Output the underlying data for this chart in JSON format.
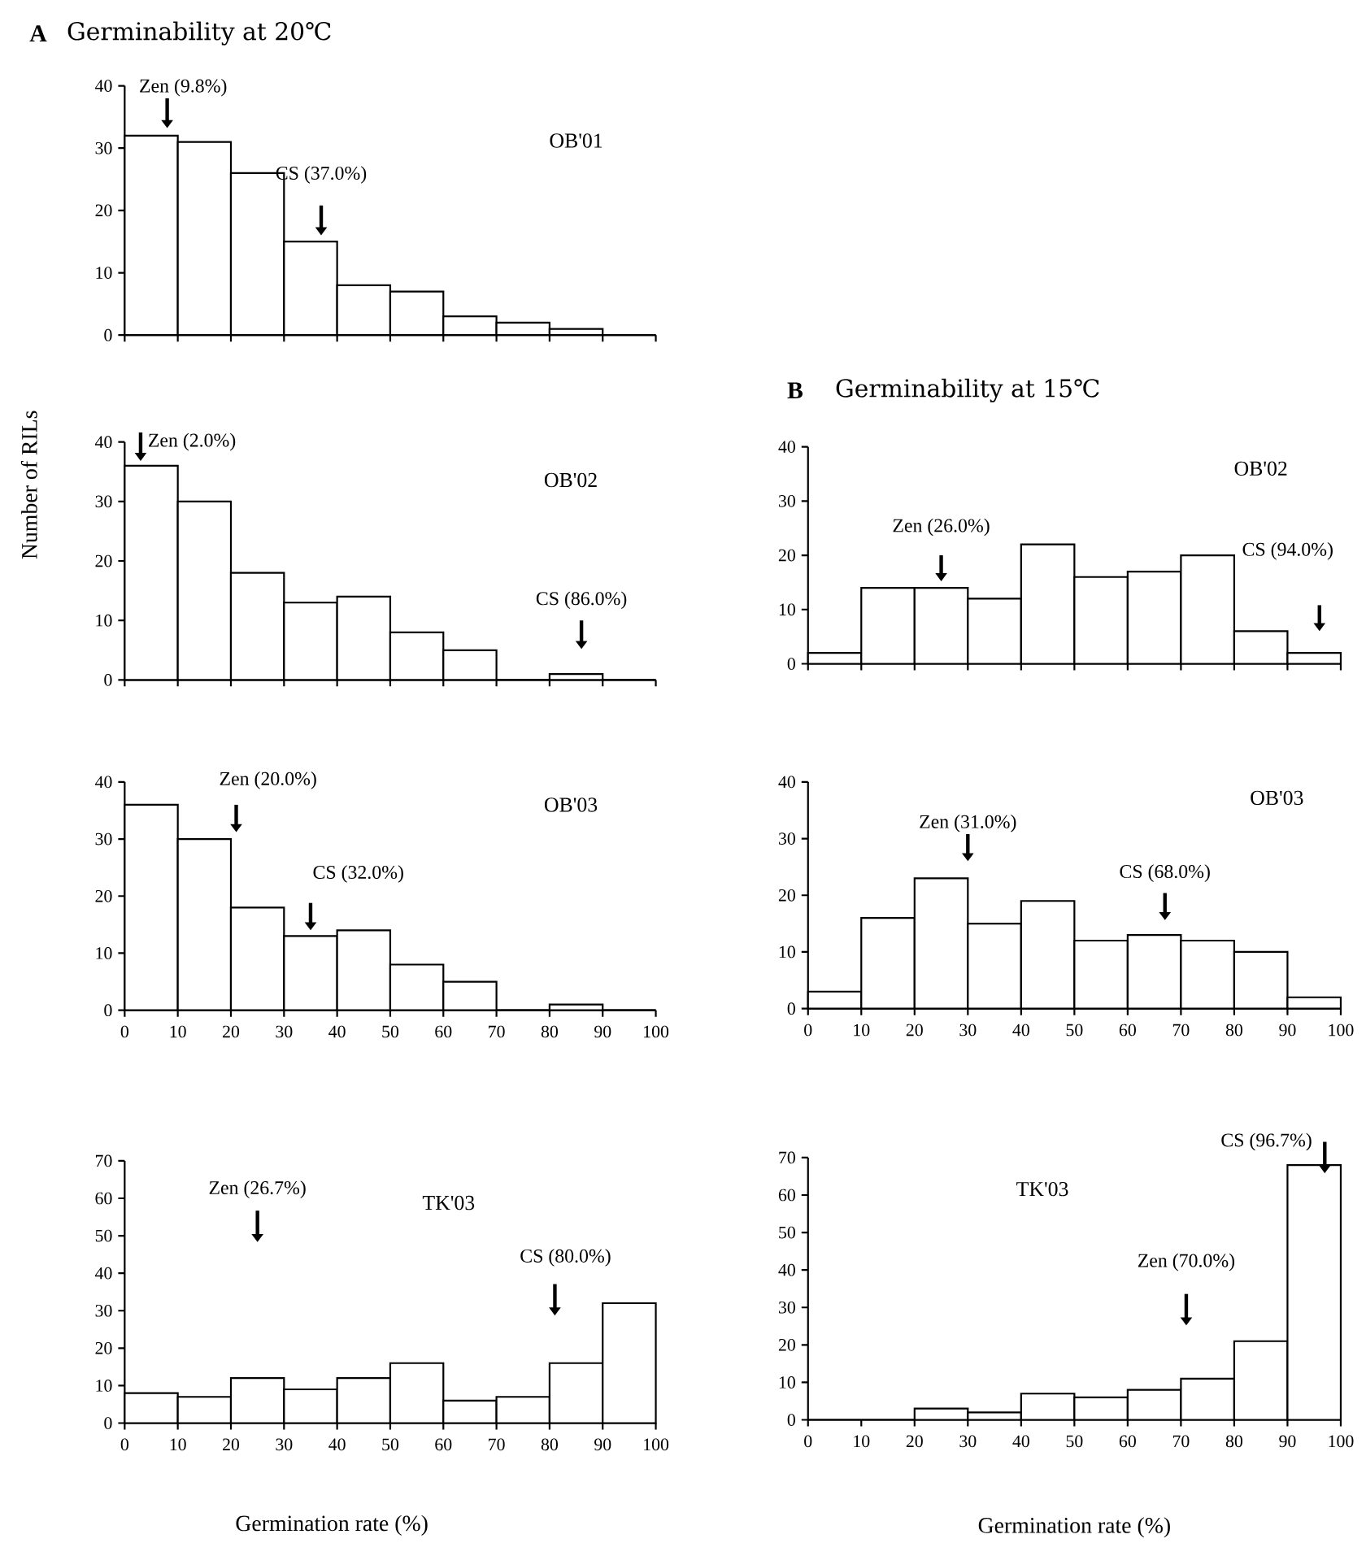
{
  "chart_data": [
    {
      "type": "histogram",
      "title": "Germinability at 20℃",
      "subtitle": "OB'01",
      "bins": [
        0,
        10,
        20,
        30,
        40,
        50,
        60,
        70,
        80,
        90,
        100
      ],
      "values": [
        32,
        31,
        26,
        15,
        8,
        7,
        3,
        2,
        1,
        0
      ],
      "xlim": [
        0,
        100
      ],
      "ylim": [
        0,
        40
      ],
      "xticks": [
        0,
        10,
        20,
        30,
        40,
        50,
        60,
        70,
        80,
        90,
        100
      ],
      "yticks": [
        0,
        10,
        20,
        30,
        40
      ],
      "tick_labels": "y",
      "annotations": [
        "A",
        "Zen (9.8%)",
        "CS (37.0%)"
      ]
    },
    {
      "type": "histogram",
      "subtitle": "OB'02",
      "ylabel": "Number of RILs",
      "bins": [
        0,
        10,
        20,
        30,
        40,
        50,
        60,
        70,
        80,
        90,
        100
      ],
      "values": [
        36,
        30,
        18,
        13,
        14,
        8,
        5,
        0,
        1,
        0
      ],
      "xlim": [
        0,
        100
      ],
      "ylim": [
        0,
        40
      ],
      "xticks": [
        0,
        10,
        20,
        30,
        40,
        50,
        60,
        70,
        80,
        90,
        100
      ],
      "yticks": [
        0,
        10,
        20,
        30,
        40
      ],
      "tick_labels": "y",
      "annotations": [
        "Zen (2.0%)",
        "CS (86.0%)"
      ]
    },
    {
      "type": "histogram",
      "subtitle": "OB'03",
      "bins": [
        0,
        10,
        20,
        30,
        40,
        50,
        60,
        70,
        80,
        90,
        100
      ],
      "values": [
        36,
        30,
        18,
        13,
        14,
        8,
        5,
        0,
        1,
        0
      ],
      "xlim": [
        0,
        100
      ],
      "ylim": [
        0,
        40
      ],
      "xticks": [
        0,
        10,
        20,
        30,
        40,
        50,
        60,
        70,
        80,
        90,
        100
      ],
      "yticks": [
        0,
        10,
        20,
        30,
        40
      ],
      "annotations": [
        "Zen (20.0%)",
        "CS (32.0%)"
      ]
    },
    {
      "type": "histogram",
      "subtitle": "TK'03",
      "xlabel": "Germination rate  (%)",
      "bins": [
        0,
        10,
        20,
        30,
        40,
        50,
        60,
        70,
        80,
        90,
        100
      ],
      "values": [
        8,
        7,
        12,
        9,
        12,
        16,
        6,
        7,
        16,
        32
      ],
      "xlim": [
        0,
        100
      ],
      "ylim": [
        0,
        70
      ],
      "xticks": [
        0,
        10,
        20,
        30,
        40,
        50,
        60,
        70,
        80,
        90,
        100
      ],
      "yticks": [
        0,
        10,
        20,
        30,
        40,
        50,
        60,
        70
      ],
      "annotations": [
        "Zen (26.7%)",
        "CS (80.0%)"
      ]
    },
    {
      "type": "histogram",
      "title": "Germinability at 15℃",
      "subtitle": "OB'02",
      "bins": [
        0,
        10,
        20,
        30,
        40,
        50,
        60,
        70,
        80,
        90,
        100
      ],
      "values": [
        2,
        14,
        14,
        12,
        22,
        16,
        17,
        20,
        6,
        2
      ],
      "xlim": [
        0,
        100
      ],
      "ylim": [
        0,
        40
      ],
      "xticks": [
        0,
        10,
        20,
        30,
        40,
        50,
        60,
        70,
        80,
        90,
        100
      ],
      "yticks": [
        0,
        10,
        20,
        30,
        40
      ],
      "tick_labels": "y",
      "annotations": [
        "B",
        "Zen (26.0%)",
        "CS (94.0%)"
      ]
    },
    {
      "type": "histogram",
      "subtitle": "OB'03",
      "bins": [
        0,
        10,
        20,
        30,
        40,
        50,
        60,
        70,
        80,
        90,
        100
      ],
      "values": [
        3,
        16,
        23,
        15,
        19,
        12,
        13,
        12,
        10,
        2
      ],
      "xlim": [
        0,
        100
      ],
      "ylim": [
        0,
        40
      ],
      "xticks": [
        0,
        10,
        20,
        30,
        40,
        50,
        60,
        70,
        80,
        90,
        100
      ],
      "yticks": [
        0,
        10,
        20,
        30,
        40
      ],
      "annotations": [
        "Zen (31.0%)",
        "CS (68.0%)"
      ]
    },
    {
      "type": "histogram",
      "subtitle": "TK'03",
      "xlabel": "Germination rate (%)",
      "bins": [
        0,
        10,
        20,
        30,
        40,
        50,
        60,
        70,
        80,
        90,
        100
      ],
      "values": [
        0,
        0,
        3,
        2,
        7,
        6,
        8,
        11,
        21,
        68
      ],
      "xlim": [
        0,
        100
      ],
      "ylim": [
        0,
        70
      ],
      "xticks": [
        0,
        10,
        20,
        30,
        40,
        50,
        60,
        70,
        80,
        90,
        100
      ],
      "yticks": [
        0,
        10,
        20,
        30,
        40,
        50,
        60,
        70
      ],
      "annotations": [
        "Zen (70.0%)",
        "CS (96.7%)"
      ]
    }
  ]
}
